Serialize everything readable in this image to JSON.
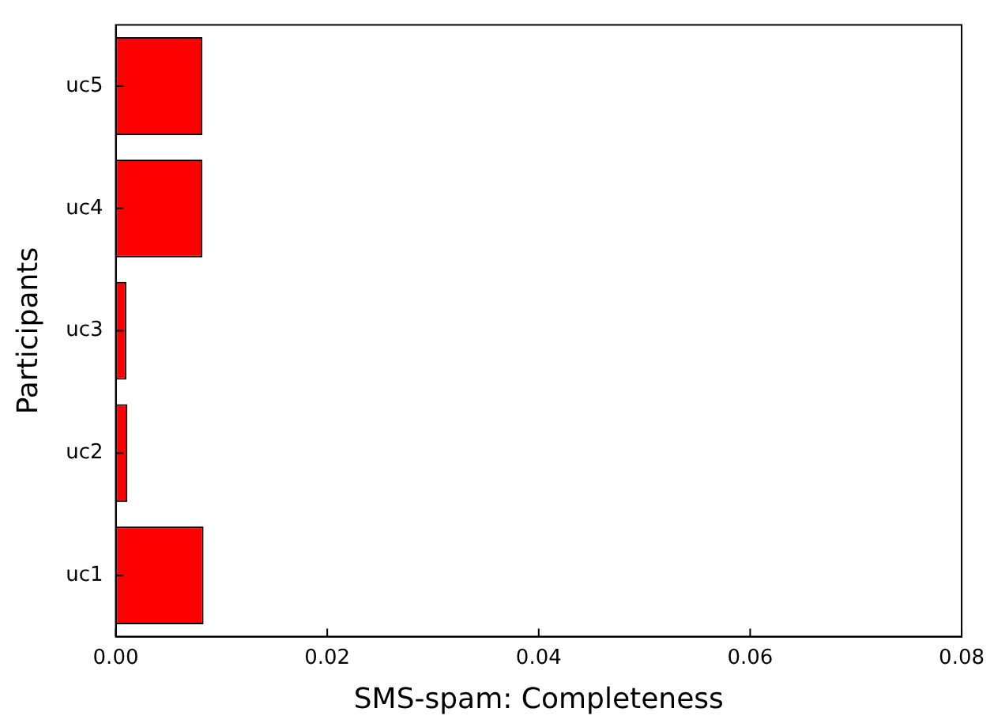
{
  "chart_data": {
    "type": "bar",
    "orientation": "horizontal",
    "xlabel": "SMS-spam: Completeness",
    "ylabel": "Participants",
    "categories": [
      "uc5",
      "uc4",
      "uc3",
      "uc2",
      "uc1"
    ],
    "values": [
      0.0082,
      0.0082,
      0.001,
      0.0011,
      0.0083
    ],
    "color": "#ff0000",
    "xlim": [
      0,
      0.08
    ],
    "xticks": [
      {
        "value": 0,
        "label": "0.00"
      },
      {
        "value": 0.02,
        "label": "0.02"
      },
      {
        "value": 0.04,
        "label": "0.04"
      },
      {
        "value": 0.06,
        "label": "0.06"
      },
      {
        "value": 0.08,
        "label": "0.08"
      }
    ]
  }
}
